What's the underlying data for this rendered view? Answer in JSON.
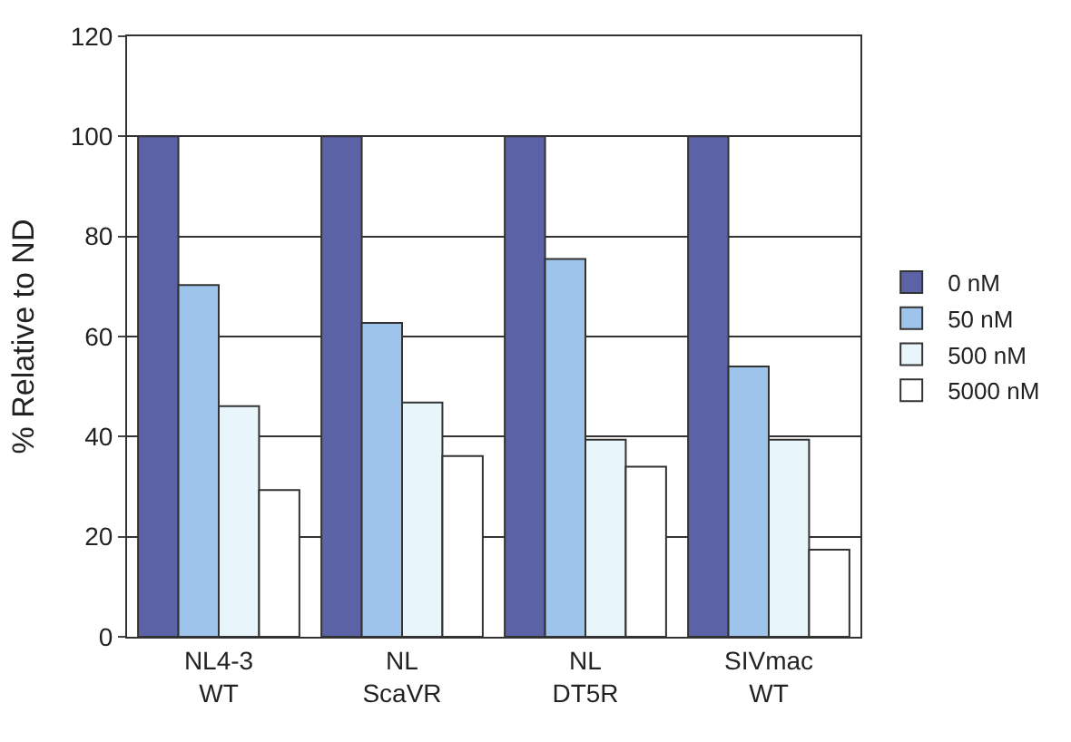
{
  "chart_data": {
    "type": "bar",
    "ylabel": "% Relative to ND",
    "categories": [
      "NL4-3\nWT",
      "NL\nScaVR",
      "NL\nDT5R",
      "SIVmac\nWT"
    ],
    "series": [
      {
        "name": "0 nM",
        "color": "#5c62a6",
        "values": [
          100,
          100,
          100,
          100
        ]
      },
      {
        "name": "50 nM",
        "color": "#9fc4ec",
        "values": [
          70.3,
          62.7,
          75.5,
          54.0
        ]
      },
      {
        "name": "500 nM",
        "color": "#e8f5fb",
        "values": [
          46.1,
          46.8,
          39.4,
          39.4
        ]
      },
      {
        "name": "5000 nM",
        "color": "#ffffff",
        "values": [
          29.3,
          36.1,
          34.0,
          17.4
        ]
      }
    ],
    "ylim": [
      0,
      120
    ],
    "yticks": [
      0,
      20,
      40,
      60,
      80,
      100,
      120
    ],
    "grid": "y",
    "legend": "right"
  }
}
